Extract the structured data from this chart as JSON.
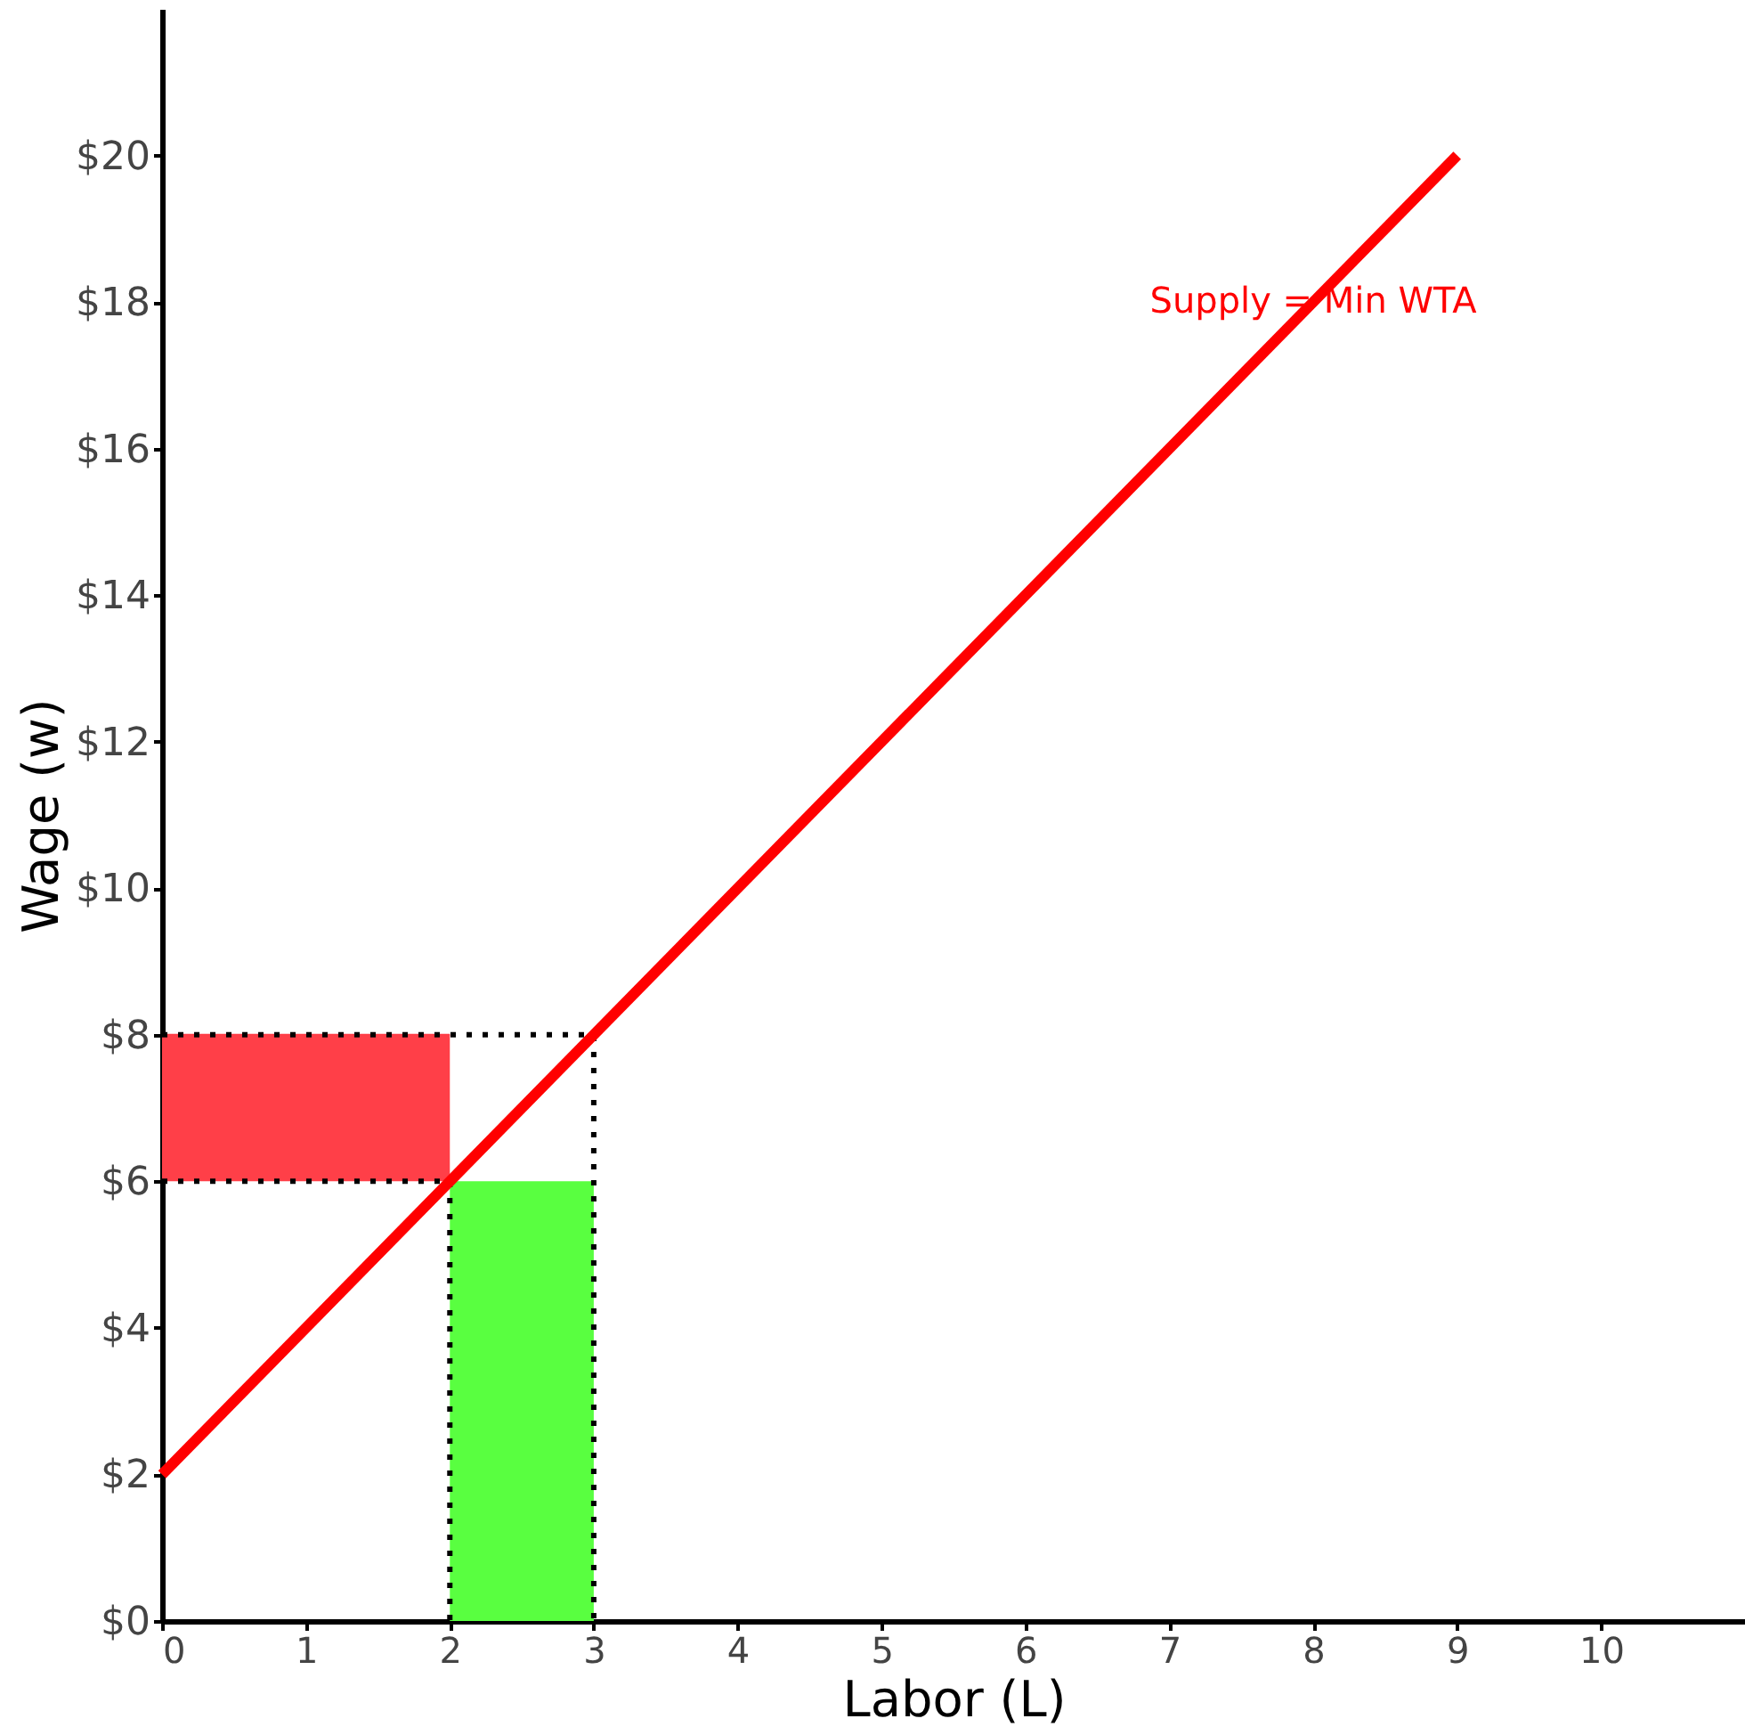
{
  "chart_data": {
    "type": "line",
    "xlabel": "Labor (L)",
    "ylabel": "Wage (w)",
    "xlim": [
      0,
      11
    ],
    "ylim": [
      0,
      22
    ],
    "xticks": [
      0,
      1,
      2,
      3,
      4,
      5,
      6,
      7,
      8,
      9,
      10
    ],
    "yticks": [
      {
        "value": 0,
        "label": "$0"
      },
      {
        "value": 2,
        "label": "$2"
      },
      {
        "value": 4,
        "label": "$4"
      },
      {
        "value": 6,
        "label": "$6"
      },
      {
        "value": 8,
        "label": "$8"
      },
      {
        "value": 10,
        "label": "$10"
      },
      {
        "value": 12,
        "label": "$12"
      },
      {
        "value": 14,
        "label": "$14"
      },
      {
        "value": 16,
        "label": "$16"
      },
      {
        "value": 18,
        "label": "$18"
      },
      {
        "value": 20,
        "label": "$20"
      }
    ],
    "grid": false,
    "series": [
      {
        "type": "line",
        "x": [
          0,
          2
        ],
        "values": [
          8,
          8
        ],
        "lower": [
          6,
          6
        ],
        "upper": [
          8,
          8
        ],
        "color": "#ff3f48",
        "line_style": "solid"
      },
      {
        "type": "area",
        "x": [
          2,
          3
        ],
        "values": [
          6,
          6
        ],
        "color": "#59ff40"
      },
      {
        "type": "line",
        "x": [
          0,
          3,
          3
        ],
        "values": [
          8,
          8,
          0
        ],
        "color": "#000000",
        "line_style": "dotted"
      },
      {
        "type": "line",
        "x": [
          0,
          2,
          2
        ],
        "values": [
          6,
          6,
          0
        ],
        "color": "#000000",
        "line_style": "dotted"
      },
      {
        "x": [
          0,
          9
        ],
        "values": [
          2,
          20
        ],
        "color": "#ff0000",
        "line_style": "solid"
      }
    ],
    "annotations": [
      {
        "text": "Supply = Min WTA",
        "x": 8,
        "y": 18
      }
    ]
  }
}
